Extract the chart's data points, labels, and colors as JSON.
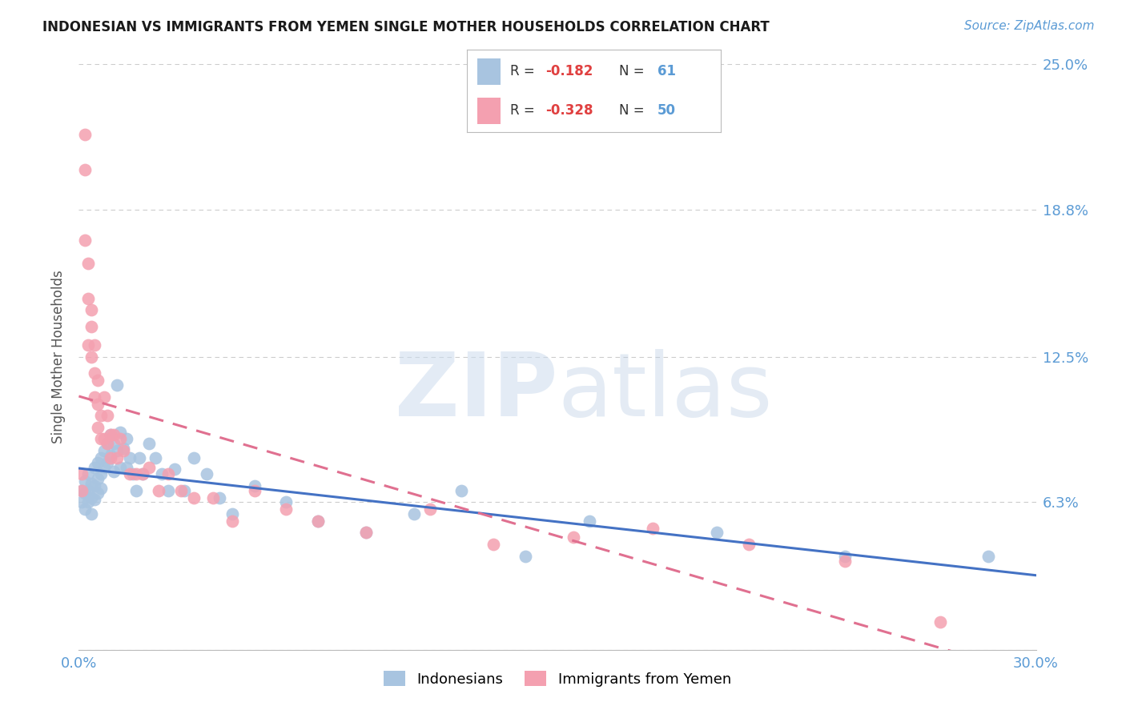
{
  "title": "INDONESIAN VS IMMIGRANTS FROM YEMEN SINGLE MOTHER HOUSEHOLDS CORRELATION CHART",
  "source": "Source: ZipAtlas.com",
  "ylabel": "Single Mother Households",
  "xlim": [
    0.0,
    0.3
  ],
  "ylim": [
    0.0,
    0.25
  ],
  "yticks": [
    0.0,
    0.063,
    0.125,
    0.188,
    0.25
  ],
  "ytick_labels": [
    "",
    "6.3%",
    "12.5%",
    "18.8%",
    "25.0%"
  ],
  "background_color": "#ffffff",
  "grid_color": "#cccccc",
  "indonesian_color": "#a8c4e0",
  "yemen_color": "#f4a0b0",
  "line_blue": "#4472c4",
  "line_pink": "#e07090",
  "indonesian_x": [
    0.001,
    0.001,
    0.002,
    0.002,
    0.002,
    0.003,
    0.003,
    0.003,
    0.004,
    0.004,
    0.004,
    0.005,
    0.005,
    0.005,
    0.006,
    0.006,
    0.006,
    0.007,
    0.007,
    0.007,
    0.008,
    0.008,
    0.009,
    0.009,
    0.01,
    0.01,
    0.011,
    0.011,
    0.012,
    0.012,
    0.013,
    0.013,
    0.014,
    0.015,
    0.015,
    0.016,
    0.017,
    0.018,
    0.019,
    0.02,
    0.022,
    0.024,
    0.026,
    0.028,
    0.03,
    0.033,
    0.036,
    0.04,
    0.044,
    0.048,
    0.055,
    0.065,
    0.075,
    0.09,
    0.105,
    0.12,
    0.14,
    0.16,
    0.2,
    0.24,
    0.285
  ],
  "indonesian_y": [
    0.068,
    0.063,
    0.072,
    0.067,
    0.06,
    0.075,
    0.068,
    0.063,
    0.071,
    0.065,
    0.058,
    0.078,
    0.07,
    0.064,
    0.08,
    0.073,
    0.067,
    0.082,
    0.075,
    0.069,
    0.085,
    0.078,
    0.088,
    0.08,
    0.092,
    0.083,
    0.076,
    0.088,
    0.113,
    0.085,
    0.078,
    0.093,
    0.086,
    0.078,
    0.09,
    0.082,
    0.075,
    0.068,
    0.082,
    0.075,
    0.088,
    0.082,
    0.075,
    0.068,
    0.077,
    0.068,
    0.082,
    0.075,
    0.065,
    0.058,
    0.07,
    0.063,
    0.055,
    0.05,
    0.058,
    0.068,
    0.04,
    0.055,
    0.05,
    0.04,
    0.04
  ],
  "yemen_x": [
    0.001,
    0.001,
    0.002,
    0.002,
    0.002,
    0.003,
    0.003,
    0.003,
    0.004,
    0.004,
    0.004,
    0.005,
    0.005,
    0.005,
    0.006,
    0.006,
    0.006,
    0.007,
    0.007,
    0.008,
    0.008,
    0.009,
    0.009,
    0.01,
    0.01,
    0.011,
    0.012,
    0.013,
    0.014,
    0.016,
    0.018,
    0.02,
    0.022,
    0.025,
    0.028,
    0.032,
    0.036,
    0.042,
    0.048,
    0.055,
    0.065,
    0.075,
    0.09,
    0.11,
    0.13,
    0.155,
    0.18,
    0.21,
    0.24,
    0.27
  ],
  "yemen_y": [
    0.068,
    0.075,
    0.22,
    0.205,
    0.175,
    0.165,
    0.15,
    0.13,
    0.145,
    0.138,
    0.125,
    0.13,
    0.118,
    0.108,
    0.115,
    0.105,
    0.095,
    0.1,
    0.09,
    0.108,
    0.09,
    0.1,
    0.088,
    0.092,
    0.082,
    0.092,
    0.082,
    0.09,
    0.085,
    0.075,
    0.075,
    0.075,
    0.078,
    0.068,
    0.075,
    0.068,
    0.065,
    0.065,
    0.055,
    0.068,
    0.06,
    0.055,
    0.05,
    0.06,
    0.045,
    0.048,
    0.052,
    0.045,
    0.038,
    0.012
  ],
  "title_fontsize": 12,
  "source_fontsize": 11,
  "tick_fontsize": 13,
  "ylabel_fontsize": 12
}
